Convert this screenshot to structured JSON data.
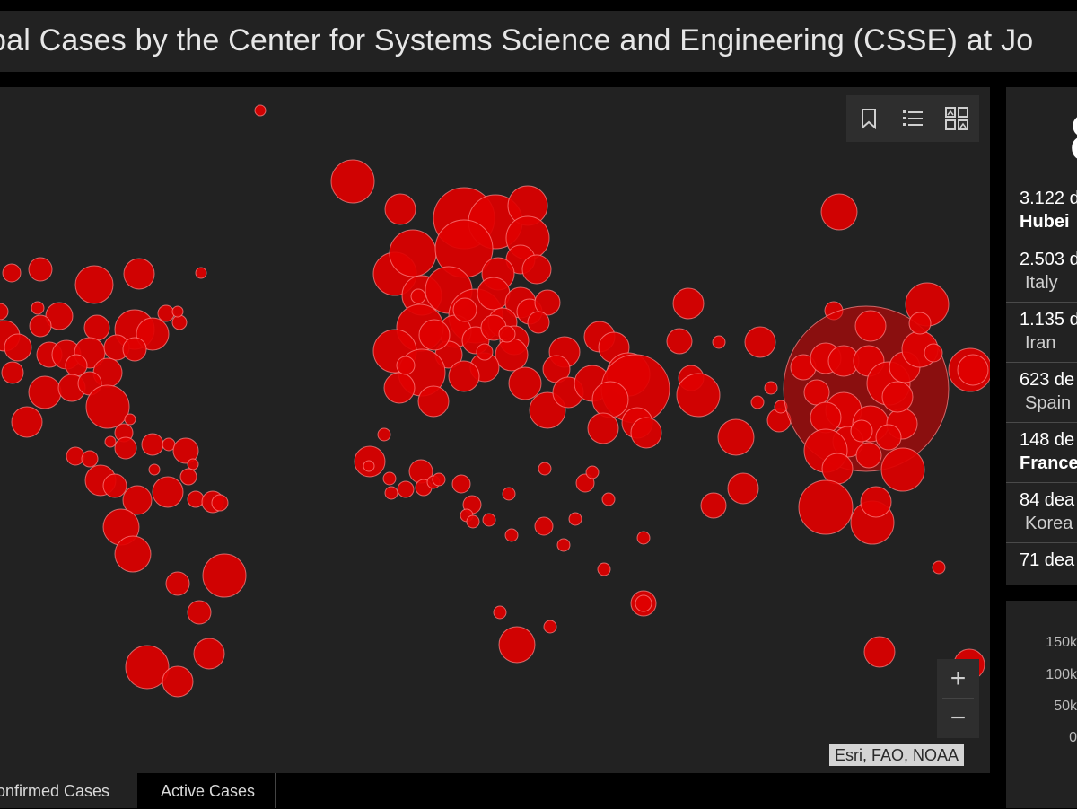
{
  "header": {
    "title": "bal Cases by the Center for Systems Science and Engineering (CSSE) at Jo"
  },
  "map": {
    "attribution": "Esri, FAO, NOAA",
    "tools": [
      "bookmark-icon",
      "legend-list-icon",
      "basemap-gallery-icon"
    ],
    "zoom_in": "+",
    "zoom_out": "−",
    "bubble_color": "#e00000"
  },
  "tabs": [
    {
      "label": "onfirmed Cases",
      "active": true
    },
    {
      "label": "Active Cases",
      "active": false
    }
  ],
  "summary": {
    "big_number": "8"
  },
  "deaths": [
    {
      "count": "3.122 d",
      "place": "Hubei",
      "bold": true
    },
    {
      "count": "2.503 d",
      "place": "Italy",
      "bold": false
    },
    {
      "count": "1.135 d",
      "place": "Iran",
      "bold": false
    },
    {
      "count": "623 de",
      "place": "Spain",
      "bold": false
    },
    {
      "count": "148 de",
      "place": "France",
      "bold": true
    },
    {
      "count": "84 dea",
      "place": "Korea",
      "bold": false
    },
    {
      "count": "71 dea",
      "place": "",
      "bold": false
    }
  ],
  "chart": {
    "y_ticks": [
      "150k",
      "100k",
      "50k",
      "0"
    ]
  }
}
